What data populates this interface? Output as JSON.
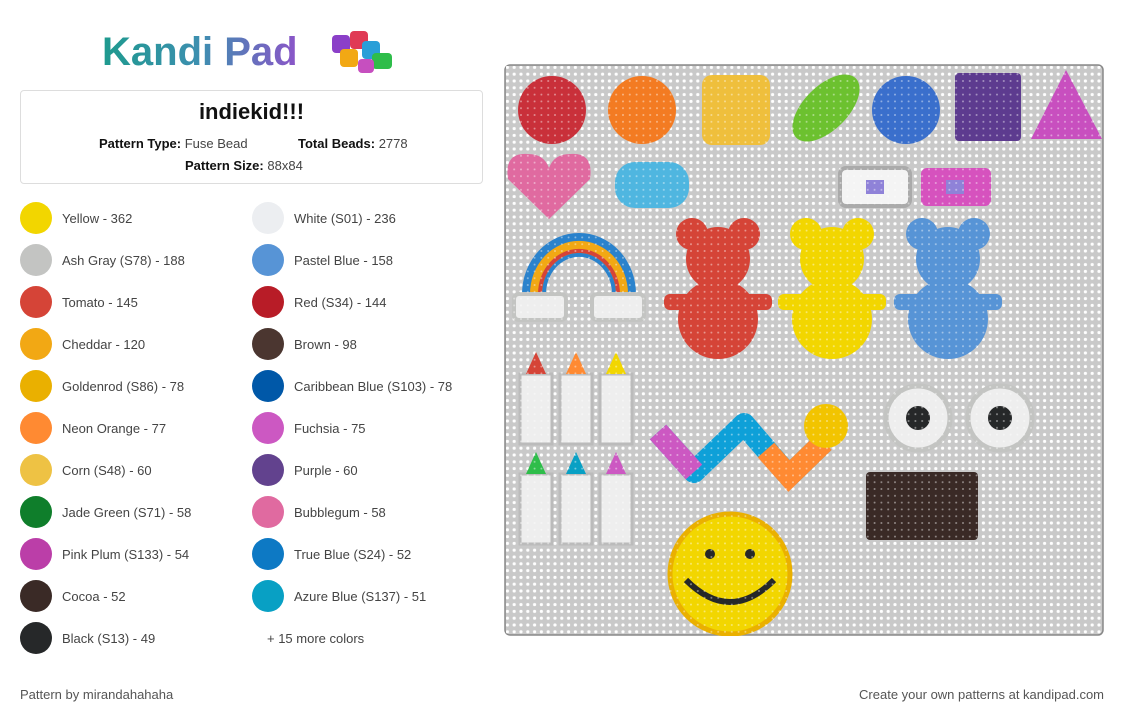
{
  "logo": "Kandi Pad",
  "pattern": {
    "title": "indiekid!!!",
    "type_label": "Pattern Type:",
    "type_value": "Fuse Bead",
    "beads_label": "Total Beads:",
    "beads_value": "2778",
    "size_label": "Pattern Size:",
    "size_value": "88x84"
  },
  "colors": [
    {
      "label": "Yellow - 362",
      "color": "#f2d600"
    },
    {
      "label": "White (S01) - 236",
      "color": "#eceef1"
    },
    {
      "label": "Ash Gray (S78) - 188",
      "color": "#c3c4c2"
    },
    {
      "label": "Pastel Blue - 158",
      "color": "#5794d6"
    },
    {
      "label": "Tomato - 145",
      "color": "#d54437"
    },
    {
      "label": "Red (S34) - 144",
      "color": "#b81c27"
    },
    {
      "label": "Cheddar - 120",
      "color": "#f2a814"
    },
    {
      "label": "Brown - 98",
      "color": "#4b3630"
    },
    {
      "label": "Goldenrod (S86) - 78",
      "color": "#eab000"
    },
    {
      "label": "Caribbean Blue (S103) - 78",
      "color": "#0058a8"
    },
    {
      "label": "Neon Orange - 77",
      "color": "#ff8a32"
    },
    {
      "label": "Fuchsia - 75",
      "color": "#cc58c2"
    },
    {
      "label": "Corn (S48) - 60",
      "color": "#eec244"
    },
    {
      "label": "Purple - 60",
      "color": "#62428e"
    },
    {
      "label": "Jade Green (S71) - 58",
      "color": "#0f7e2b"
    },
    {
      "label": "Bubblegum - 58",
      "color": "#e06aa0"
    },
    {
      "label": "Pink Plum (S133) - 54",
      "color": "#bb3ea8"
    },
    {
      "label": "True Blue (S24) - 52",
      "color": "#0d79c4"
    },
    {
      "label": "Cocoa - 52",
      "color": "#3a2a26"
    },
    {
      "label": "Azure Blue (S137) - 51",
      "color": "#08a0c4"
    },
    {
      "label": "Black (S13) - 49",
      "color": "#262829"
    }
  ],
  "more_colors": "+ 15 more colors",
  "footer": {
    "author": "Pattern by mirandahahaha",
    "promo": "Create your own patterns at kandipad.com"
  }
}
